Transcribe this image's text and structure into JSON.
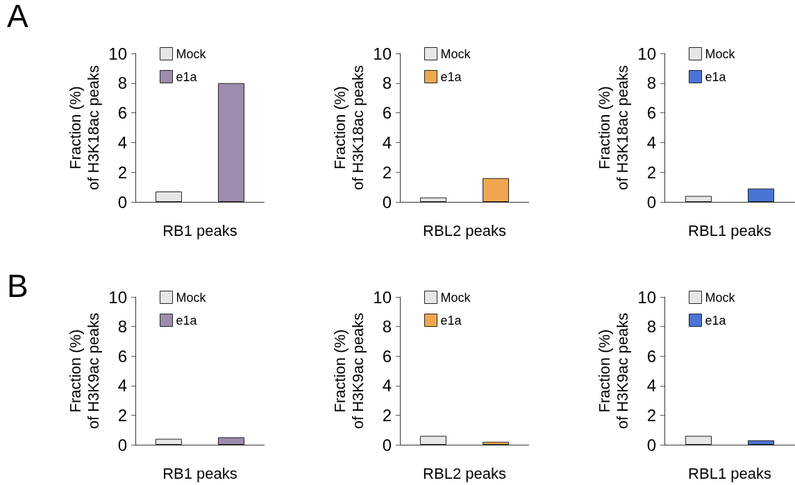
{
  "chart_data": [
    {
      "type": "bar",
      "annotations": [
        "A"
      ],
      "ylabel": "Fraction (%)\nof H3K18ac peaks",
      "xlabel": "RB1 peaks",
      "categories": [
        null
      ],
      "ylim": [
        0,
        10
      ],
      "yticks": [
        0,
        2,
        4,
        6,
        8,
        10
      ],
      "legend": "top left",
      "series": [
        {
          "name": "Mock",
          "color": "#e6e6e6",
          "values": [
            0.7
          ]
        },
        {
          "name": "e1a",
          "color": "#9d8cad",
          "values": [
            8.0
          ]
        }
      ]
    },
    {
      "type": "bar",
      "ylabel": "Fraction (%)\nof H3K18ac peaks",
      "xlabel": "RBL2 peaks",
      "categories": [
        null
      ],
      "ylim": [
        0,
        10
      ],
      "yticks": [
        0,
        2,
        4,
        6,
        8,
        10
      ],
      "legend": "top left",
      "series": [
        {
          "name": "Mock",
          "color": "#e6e6e6",
          "values": [
            0.3
          ]
        },
        {
          "name": "e1a",
          "color": "#f0a64f",
          "values": [
            1.6
          ]
        }
      ]
    },
    {
      "type": "bar",
      "ylabel": "Fraction (%)\nof H3K18ac peaks",
      "xlabel": "RBL1 peaks",
      "categories": [
        null
      ],
      "ylim": [
        0,
        10
      ],
      "yticks": [
        0,
        2,
        4,
        6,
        8,
        10
      ],
      "legend": "top left",
      "series": [
        {
          "name": "Mock",
          "color": "#e6e6e6",
          "values": [
            0.4
          ]
        },
        {
          "name": "e1a",
          "color": "#4a74d6",
          "values": [
            0.9
          ]
        }
      ]
    },
    {
      "type": "bar",
      "annotations": [
        "B"
      ],
      "ylabel": "Fraction (%)\nof H3K9ac peaks",
      "xlabel": "RB1 peaks",
      "categories": [
        null
      ],
      "ylim": [
        0,
        10
      ],
      "yticks": [
        0,
        2,
        4,
        6,
        8,
        10
      ],
      "legend": "top left",
      "series": [
        {
          "name": "Mock",
          "color": "#e6e6e6",
          "values": [
            0.4
          ]
        },
        {
          "name": "e1a",
          "color": "#9d8cad",
          "values": [
            0.5
          ]
        }
      ]
    },
    {
      "type": "bar",
      "ylabel": "Fraction (%)\nof H3K9ac peaks",
      "xlabel": "RBL2 peaks",
      "categories": [
        null
      ],
      "ylim": [
        0,
        10
      ],
      "yticks": [
        0,
        2,
        4,
        6,
        8,
        10
      ],
      "legend": "top left",
      "series": [
        {
          "name": "Mock",
          "color": "#e6e6e6",
          "values": [
            0.6
          ]
        },
        {
          "name": "e1a",
          "color": "#f0a64f",
          "values": [
            0.2
          ]
        }
      ]
    },
    {
      "type": "bar",
      "ylabel": "Fraction (%)\nof H3K9ac peaks",
      "xlabel": "RBL1 peaks",
      "categories": [
        null
      ],
      "ylim": [
        0,
        10
      ],
      "yticks": [
        0,
        2,
        4,
        6,
        8,
        10
      ],
      "legend": "top left",
      "series": [
        {
          "name": "Mock",
          "color": "#e6e6e6",
          "values": [
            0.6
          ]
        },
        {
          "name": "e1a",
          "color": "#4a74d6",
          "values": [
            0.3
          ]
        }
      ]
    }
  ]
}
